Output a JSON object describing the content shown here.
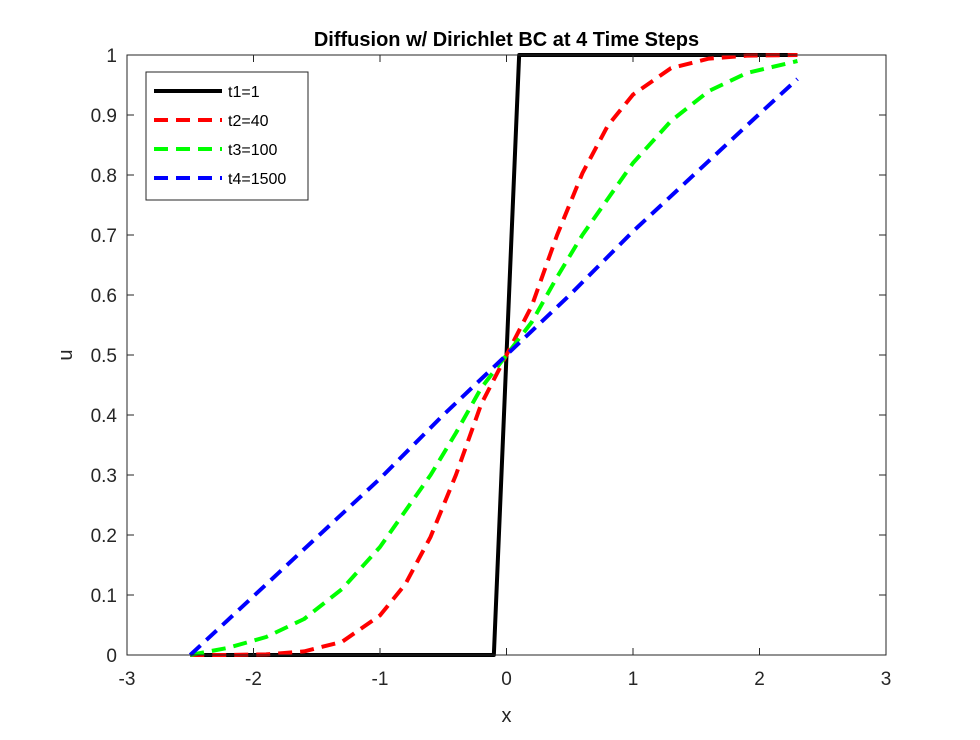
{
  "chart_data": {
    "type": "line",
    "title": "Diffusion w/ Dirichlet BC at 4 Time Steps",
    "xlabel": "x",
    "ylabel": "u",
    "xlim": [
      -3,
      3
    ],
    "ylim": [
      0,
      1
    ],
    "xticks": [
      -3,
      -2,
      -1,
      0,
      1,
      2,
      3
    ],
    "yticks": [
      0,
      0.1,
      0.2,
      0.3,
      0.4,
      0.5,
      0.6,
      0.7,
      0.8,
      0.9,
      1
    ],
    "xtick_labels": [
      "-3",
      "-2",
      "-1",
      "0",
      "1",
      "2",
      "3"
    ],
    "ytick_labels": [
      "0",
      "0.1",
      "0.2",
      "0.3",
      "0.4",
      "0.5",
      "0.6",
      "0.7",
      "0.8",
      "0.9",
      "1"
    ],
    "grid": false,
    "legend_position": "top-left",
    "series": [
      {
        "name": "t1=1",
        "color": "#000000",
        "style": "solid",
        "x": [
          -2.5,
          -0.1,
          0.1,
          2.3
        ],
        "y": [
          0,
          0,
          1,
          1
        ]
      },
      {
        "name": "t2=40",
        "color": "#ff0000",
        "style": "dashed",
        "x": [
          -2.5,
          -2.2,
          -1.9,
          -1.6,
          -1.3,
          -1.0,
          -0.8,
          -0.6,
          -0.4,
          -0.2,
          0.0,
          0.2,
          0.4,
          0.6,
          0.8,
          1.0,
          1.3,
          1.6,
          1.9,
          2.3
        ],
        "y": [
          0.0,
          0.0,
          0.001,
          0.006,
          0.022,
          0.066,
          0.118,
          0.197,
          0.3,
          0.418,
          0.5,
          0.582,
          0.7,
          0.803,
          0.882,
          0.934,
          0.978,
          0.994,
          0.999,
          1.0
        ]
      },
      {
        "name": "t3=100",
        "color": "#00ff00",
        "style": "dashed",
        "x": [
          -2.5,
          -2.2,
          -1.9,
          -1.6,
          -1.3,
          -1.0,
          -0.8,
          -0.6,
          -0.4,
          -0.2,
          0.0,
          0.2,
          0.4,
          0.6,
          0.8,
          1.0,
          1.3,
          1.6,
          1.9,
          2.3
        ],
        "y": [
          0.0,
          0.012,
          0.03,
          0.06,
          0.11,
          0.18,
          0.24,
          0.3,
          0.37,
          0.445,
          0.5,
          0.555,
          0.63,
          0.7,
          0.76,
          0.82,
          0.89,
          0.94,
          0.97,
          0.99
        ]
      },
      {
        "name": "t4=1500",
        "color": "#0000ff",
        "style": "dashed",
        "x": [
          -2.5,
          -2.0,
          -1.5,
          -1.0,
          -0.5,
          0.0,
          0.5,
          1.0,
          1.5,
          2.0,
          2.3
        ],
        "y": [
          0.0,
          0.098,
          0.196,
          0.294,
          0.4,
          0.5,
          0.6,
          0.706,
          0.804,
          0.902,
          0.96
        ]
      }
    ]
  }
}
